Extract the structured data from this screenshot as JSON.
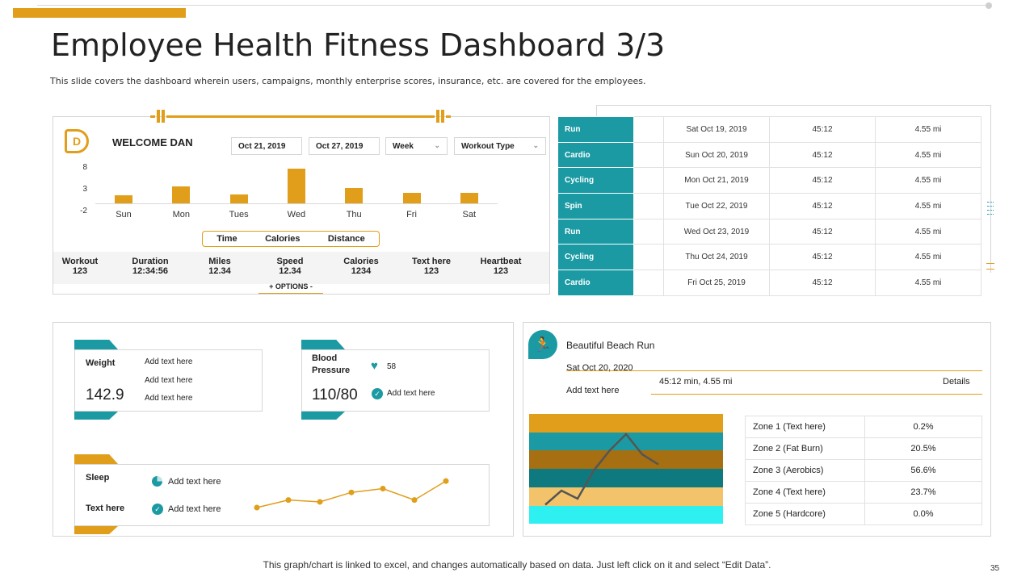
{
  "header": {
    "title": "Employee Health Fitness Dashboard 3/3",
    "subtitle": "This slide covers the dashboard wherein users, campaigns, monthly enterprise scores, insurance, etc. are covered for the  employees."
  },
  "colors": {
    "accent": "#E09E1A",
    "teal": "#1B9AA3",
    "zone_brown": "#A56F12",
    "zone_darkteal": "#0E7A7F",
    "zone_sand": "#F2C36B",
    "zone_cyan": "#2EF0F0"
  },
  "weekly": {
    "logo_letter": "D",
    "welcome": "WELCOME DAN",
    "start_date": "Oct 21, 2019",
    "end_date": "Oct 27, 2019",
    "period": "Week",
    "workout_type": "Workout Type",
    "options": "+   OPTIONS   -",
    "tabs": [
      "Time",
      "Calories",
      "Distance"
    ],
    "stats": [
      {
        "label": "Workout",
        "value": "123"
      },
      {
        "label": "Duration",
        "value": "12:34:56"
      },
      {
        "label": "Miles",
        "value": "12.34"
      },
      {
        "label": "Speed",
        "value": "12.34"
      },
      {
        "label": "Calories",
        "value": "1234"
      },
      {
        "label": "Text here",
        "value": "123"
      },
      {
        "label": "Heartbeat",
        "value": "123"
      }
    ]
  },
  "chart_data": [
    {
      "type": "bar",
      "categories": [
        "Sun",
        "Mon",
        "Tues",
        "Wed",
        "Thu",
        "Fri",
        "Sat"
      ],
      "values": [
        1.8,
        3.8,
        2.0,
        8.0,
        3.5,
        2.4,
        2.4
      ],
      "yticks": [
        "8",
        "3",
        "-2"
      ],
      "ylim": [
        -2,
        8
      ]
    },
    {
      "type": "line",
      "x": [
        1,
        2,
        3,
        4,
        5,
        6,
        7
      ],
      "values": [
        1,
        3,
        2.5,
        5,
        6,
        3,
        8
      ]
    },
    {
      "type": "line",
      "x": [
        1,
        2,
        3,
        4,
        5,
        6,
        7,
        8
      ],
      "values": [
        1.5,
        2.2,
        1.8,
        3.2,
        4.2,
        5.0,
        4.0,
        3.5
      ]
    }
  ],
  "workouts": [
    {
      "activity": "Run",
      "date": "Sat Oct 19, 2019",
      "duration": "45:12",
      "distance": "4.55 mi"
    },
    {
      "activity": "Cardio",
      "date": "Sun Oct 20, 2019",
      "duration": "45:12",
      "distance": "4.55 mi"
    },
    {
      "activity": "Cycling",
      "date": "Mon Oct 21, 2019",
      "duration": "45:12",
      "distance": "4.55 mi"
    },
    {
      "activity": "Spin",
      "date": "Tue Oct 22, 2019",
      "duration": "45:12",
      "distance": "4.55 mi"
    },
    {
      "activity": "Run",
      "date": "Wed Oct 23, 2019",
      "duration": "45:12",
      "distance": "4.55 mi"
    },
    {
      "activity": "Cycling",
      "date": "Thu Oct 24, 2019",
      "duration": "45:12",
      "distance": "4.55 mi"
    },
    {
      "activity": "Cardio",
      "date": "Fri Oct 25, 2019",
      "duration": "45:12",
      "distance": "4.55 mi"
    }
  ],
  "health": {
    "weight": {
      "label": "Weight",
      "value": "142.9",
      "notes": [
        "Add text here",
        "Add text here",
        "Add text here"
      ]
    },
    "blood_pressure": {
      "label": "Blood Pressure",
      "value": "110/80",
      "heart_value": "58",
      "note": "Add text here"
    },
    "sleep": {
      "label": "Sleep",
      "note": "Add text here"
    },
    "text": {
      "label": "Text here",
      "note": "Add text here"
    }
  },
  "run": {
    "title": "Beautiful Beach Run",
    "date": "Sat Oct 20, 2020",
    "summary": "45:12 min,  4.55 mi",
    "details": "Details",
    "note": "Add text here",
    "zones": [
      {
        "name": "Zone 1 (Text here)",
        "value": "0.2%"
      },
      {
        "name": "Zone 2  (Fat Burn)",
        "value": "20.5%"
      },
      {
        "name": "Zone 3 (Aerobics)",
        "value": "56.6%"
      },
      {
        "name": "Zone 4 (Text here)",
        "value": "23.7%"
      },
      {
        "name": "Zone 5  (Hardcore)",
        "value": "0.0%"
      }
    ]
  },
  "footer": {
    "note": "This graph/chart is linked to excel,  and changes automatically based on data. Just left click on it and select “Edit Data”.",
    "page": "35"
  }
}
